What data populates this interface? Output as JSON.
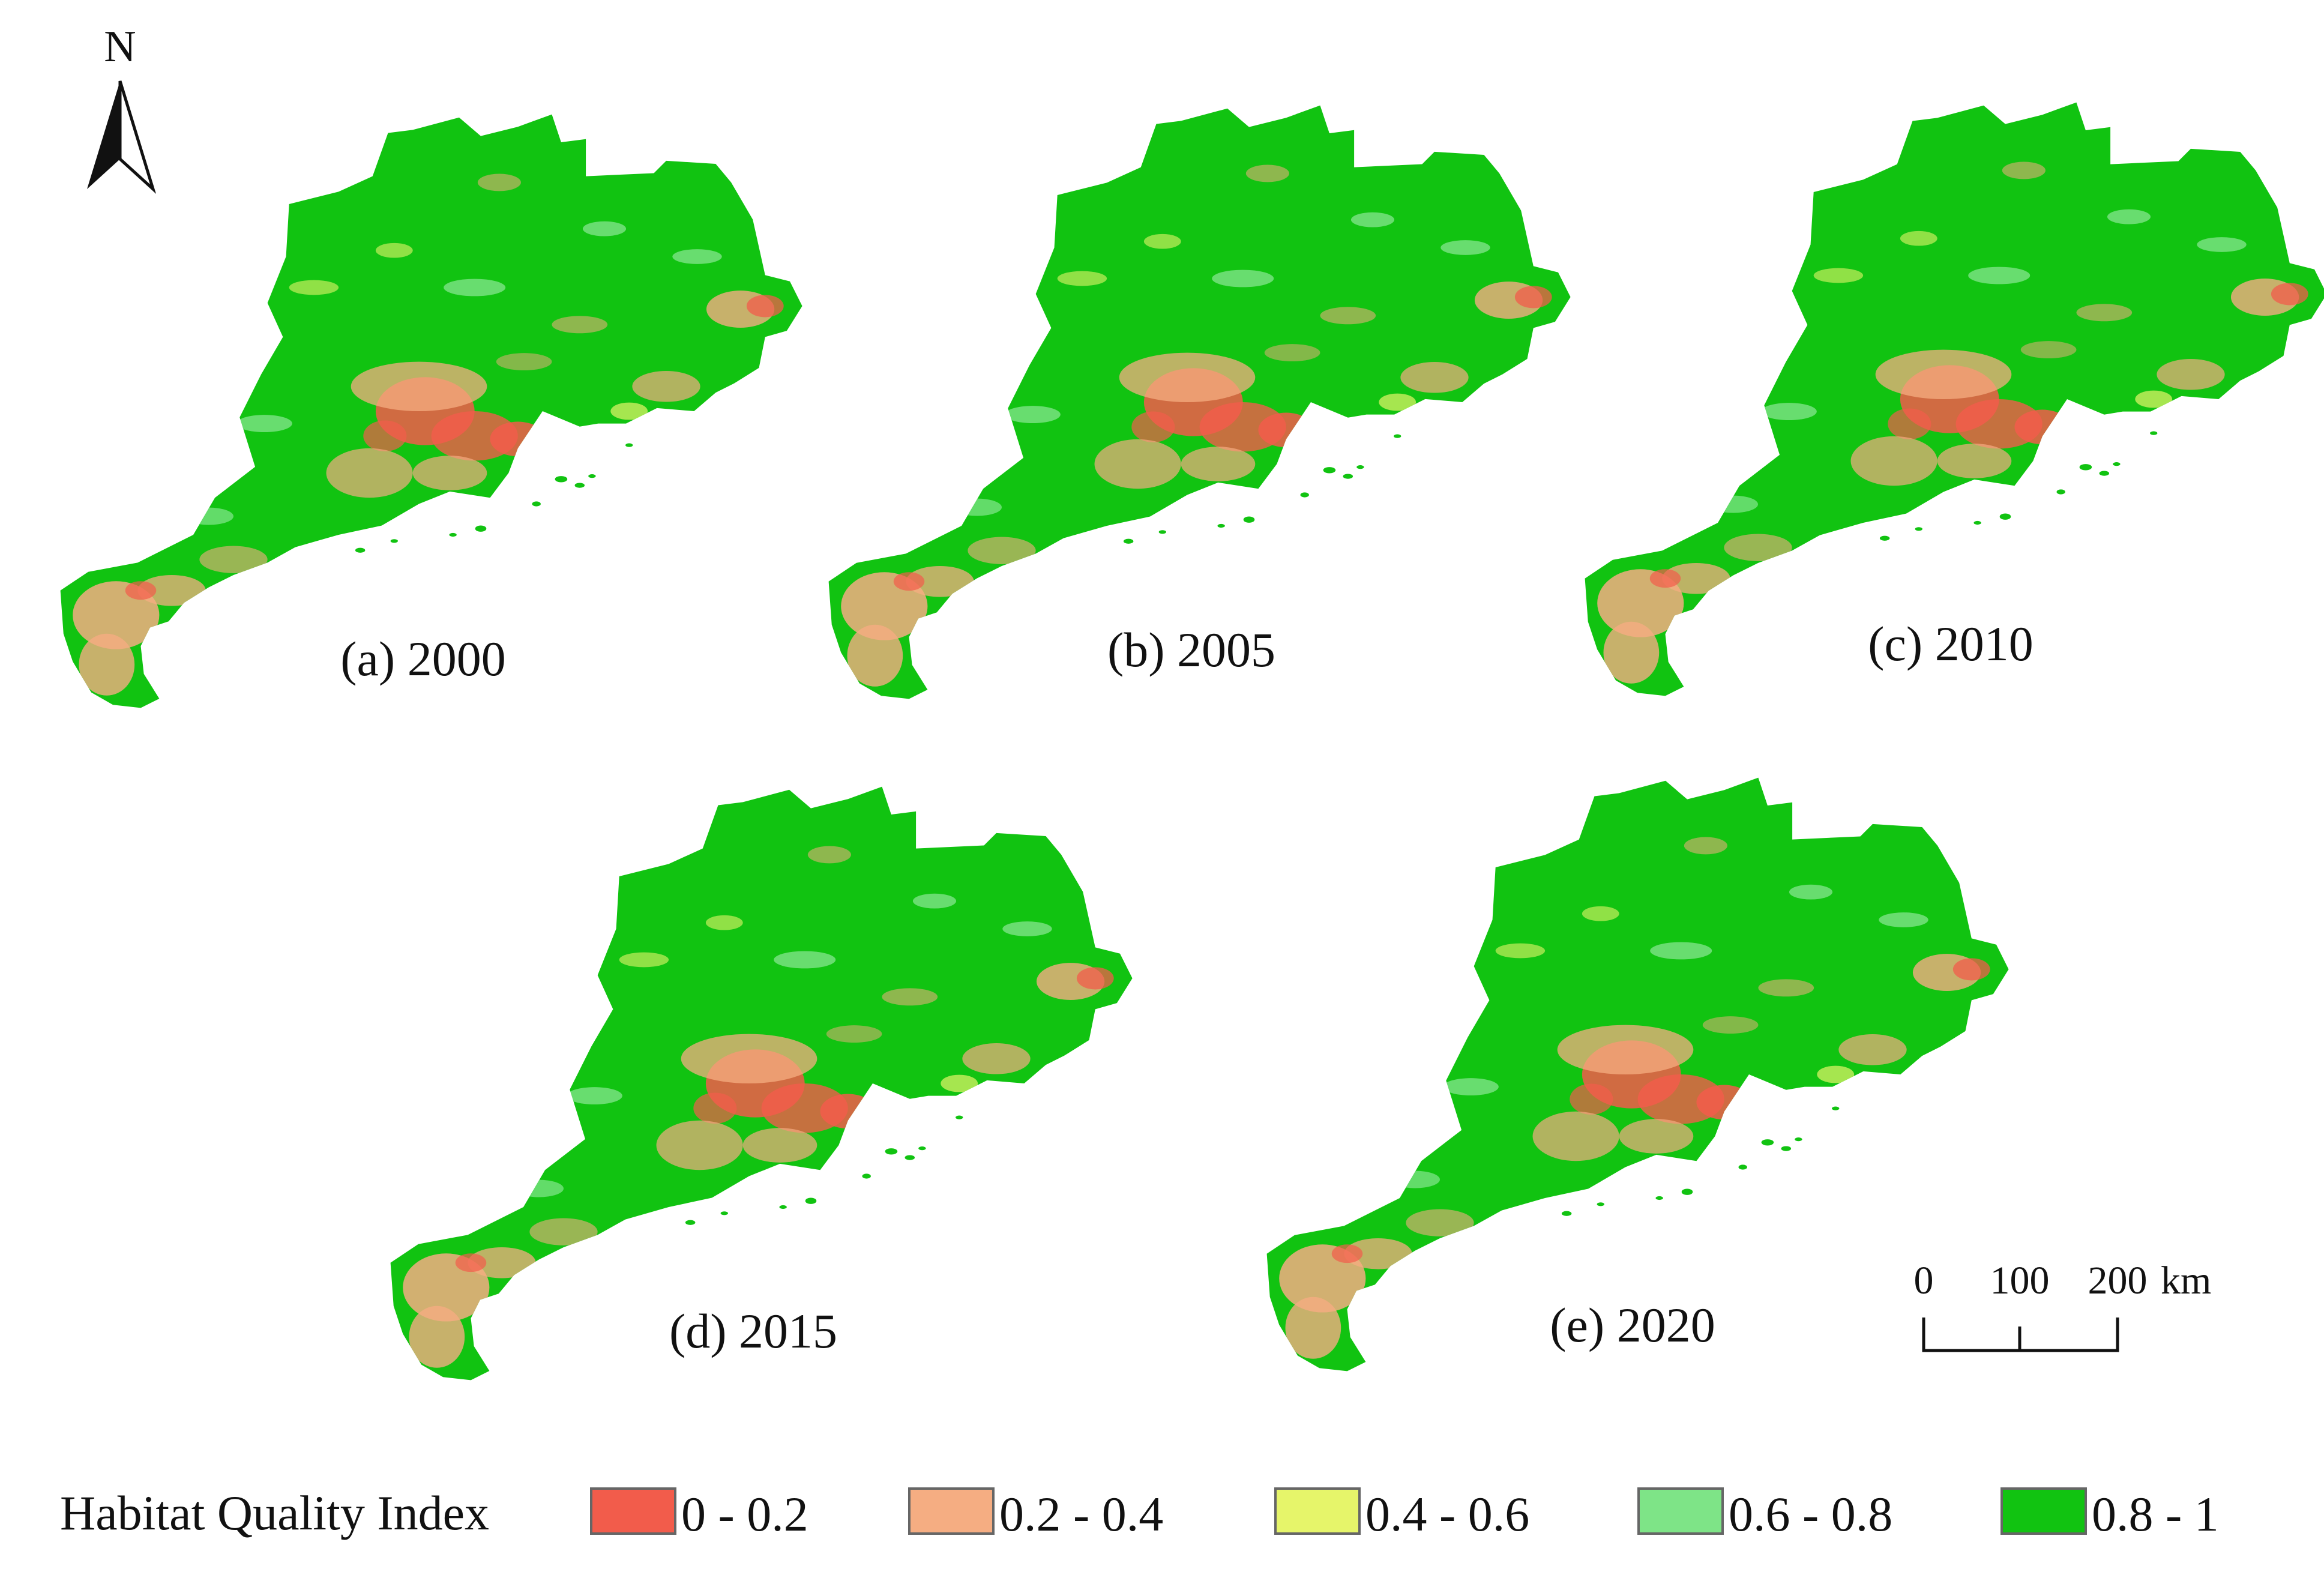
{
  "north_arrow": {
    "label": "N"
  },
  "maps": [
    {
      "id": "a",
      "label": "(a)  2000"
    },
    {
      "id": "b",
      "label": "(b)  2005"
    },
    {
      "id": "c",
      "label": "(c) 2010"
    },
    {
      "id": "d",
      "label": "(d) 2015"
    },
    {
      "id": "e",
      "label": "(e) 2020"
    }
  ],
  "scale_bar": {
    "ticks": [
      "0",
      "100",
      "200"
    ],
    "unit": "km"
  },
  "legend": {
    "title": "Habitat Quality Index",
    "classes": [
      {
        "label": "0 - 0.2",
        "color": "#f25c4b"
      },
      {
        "label": "0.2 - 0.4",
        "color": "#f5ad82"
      },
      {
        "label": "0.4 - 0.6",
        "color": "#e6f56a"
      },
      {
        "label": "0.6 - 0.8",
        "color": "#7ee487"
      },
      {
        "label": "0.8 - 1",
        "color": "#11c311"
      }
    ]
  }
}
